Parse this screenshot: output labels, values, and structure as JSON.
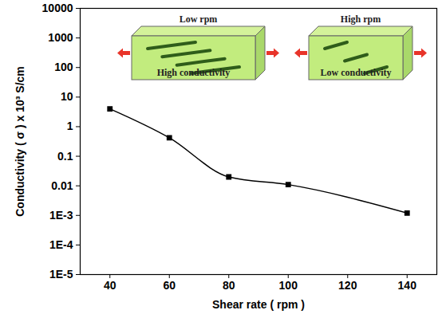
{
  "chart_data": {
    "type": "line",
    "x_label": "Shear rate ( rpm )",
    "y_label": "Conductivity ( σ ) x 10³ S/cm",
    "x": [
      40,
      60,
      80,
      100,
      140
    ],
    "series": [
      {
        "name": "Conductivity",
        "color": "#000000",
        "marker": "square",
        "line_style": "solid",
        "values": [
          4,
          0.42,
          0.02,
          0.011,
          0.0012
        ]
      }
    ],
    "log": "y",
    "grid": false,
    "xlim": [
      30,
      150
    ],
    "xticks": [
      40,
      60,
      80,
      100,
      120,
      140
    ],
    "ylim": [
      1e-05,
      10000
    ],
    "yticks": [
      {
        "value": 1e-05,
        "label": "1E-5"
      },
      {
        "value": 0.0001,
        "label": "1E-4"
      },
      {
        "value": 0.001,
        "label": "1E-3"
      },
      0.01,
      0.1,
      1,
      10,
      100,
      1000,
      10000
    ],
    "annotations": [
      "Low rpm",
      "High conductivity",
      "High rpm",
      "Low conductivity"
    ]
  }
}
